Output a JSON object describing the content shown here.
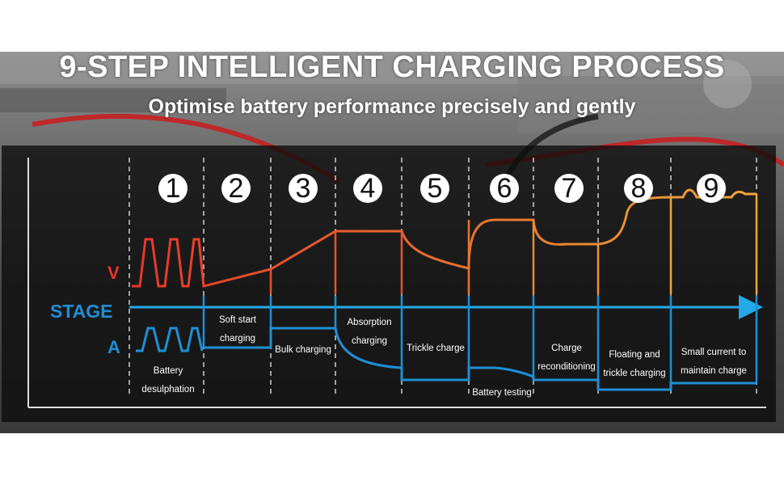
{
  "header": {
    "title": "9-STEP INTELLIGENT CHARGING PROCESS",
    "subtitle": "Optimise battery performance precisely and gently"
  },
  "axes": {
    "voltage_label": "V",
    "current_label": "A",
    "stage_label": "STAGE"
  },
  "steps": [
    {
      "number": "1",
      "name_line1": "Battery",
      "name_line2": "desulphation"
    },
    {
      "number": "2",
      "name_line1": "Soft start",
      "name_line2": "charging"
    },
    {
      "number": "3",
      "name_line1": "Bulk charging",
      "name_line2": ""
    },
    {
      "number": "4",
      "name_line1": "Absorption",
      "name_line2": "charging"
    },
    {
      "number": "5",
      "name_line1": "Trickle charge",
      "name_line2": ""
    },
    {
      "number": "6",
      "name_line1": "Battery testing",
      "name_line2": ""
    },
    {
      "number": "7",
      "name_line1": "Charge",
      "name_line2": "reconditioning"
    },
    {
      "number": "8",
      "name_line1": "Floating and",
      "name_line2": "trickle charging"
    },
    {
      "number": "9",
      "name_line1": "Small current to",
      "name_line2": "maintain charge"
    }
  ],
  "colors": {
    "voltage_start": "#e8362c",
    "voltage_end": "#f0a63a",
    "current": "#1f8fd6",
    "stage_line": "#23a9e8"
  }
}
